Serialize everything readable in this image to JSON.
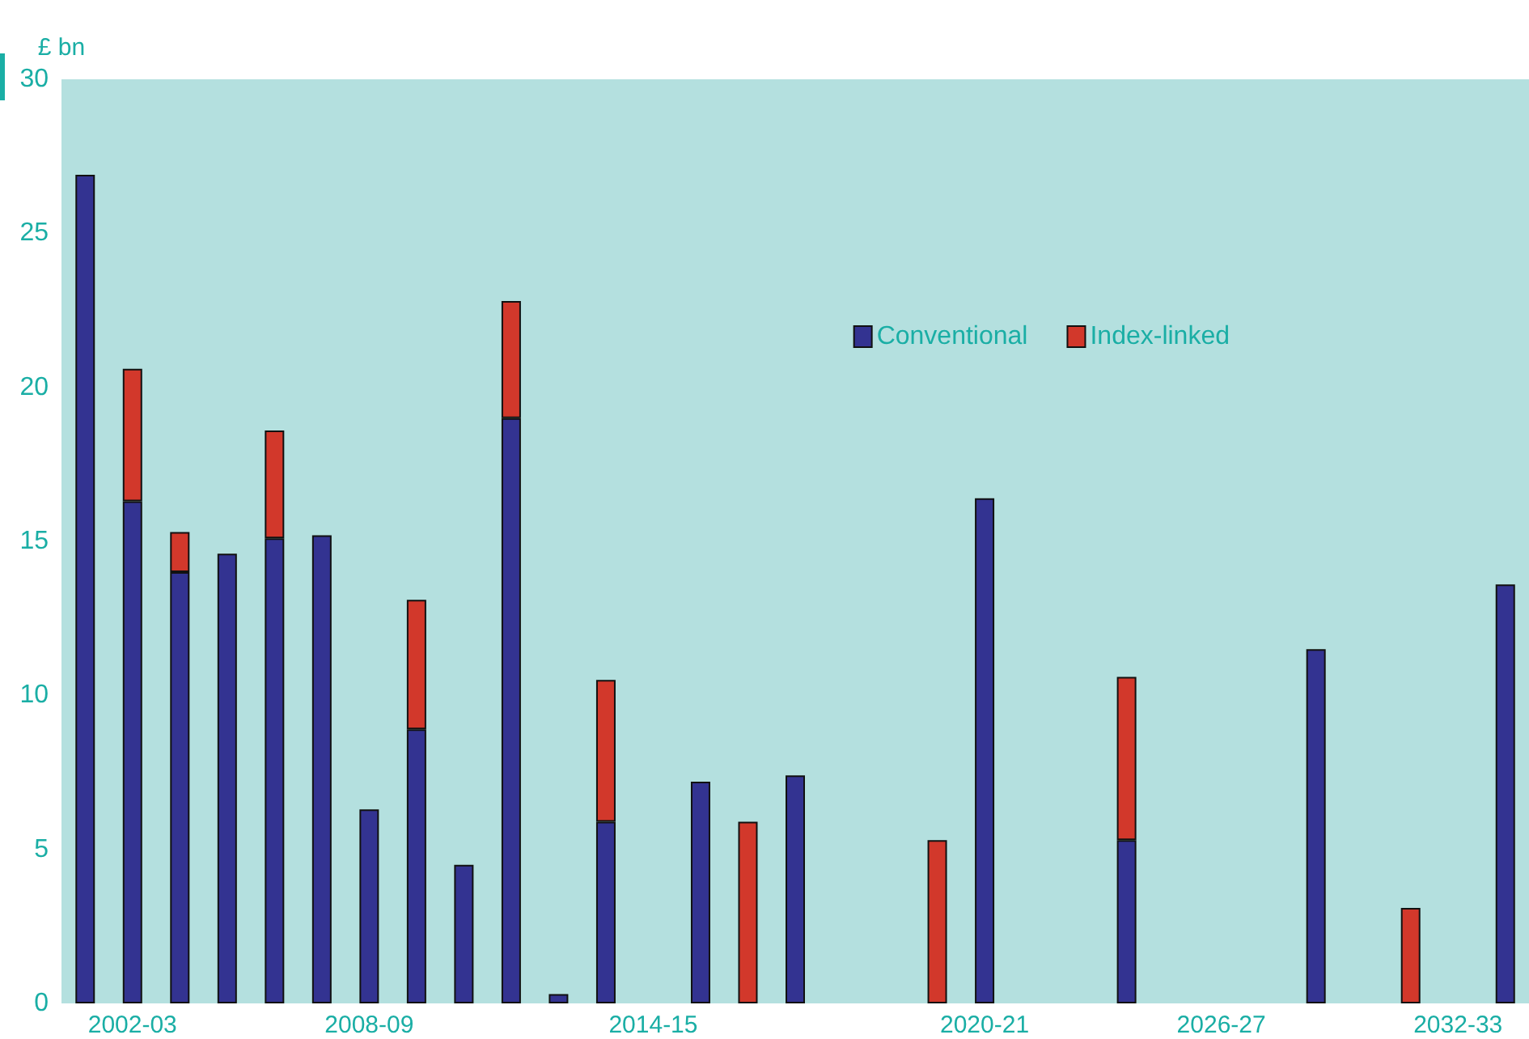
{
  "chart_data": {
    "type": "bar",
    "ylabel": "£ bn",
    "stacked": true,
    "legend": "top right",
    "grid": false,
    "categories": [
      null,
      "2002-03",
      null,
      null,
      null,
      null,
      "2008-09",
      null,
      null,
      null,
      null,
      null,
      "2014-15",
      null,
      null,
      null,
      null,
      null,
      null,
      "2020-21",
      null,
      null,
      null,
      null,
      "2026-27",
      null,
      null,
      null,
      null,
      "2032-33",
      null
    ],
    "ylim": [
      0,
      30
    ],
    "yticks": [
      0,
      5,
      10,
      15,
      20,
      25,
      30
    ],
    "series": [
      {
        "name": "Conventional",
        "color": "#333391",
        "values": [
          26.9,
          16.3,
          14.0,
          14.6,
          15.1,
          15.2,
          6.3,
          8.9,
          4.5,
          19.0,
          0.3,
          5.9,
          null,
          7.2,
          null,
          7.4,
          null,
          null,
          null,
          16.4,
          null,
          null,
          5.3,
          null,
          null,
          null,
          11.5,
          null,
          null,
          null,
          13.6
        ]
      },
      {
        "name": "Index-linked",
        "color": "#d2382b",
        "values": [
          null,
          4.3,
          1.3,
          null,
          3.5,
          null,
          null,
          4.2,
          null,
          3.8,
          null,
          4.6,
          null,
          null,
          5.9,
          null,
          null,
          null,
          5.3,
          null,
          null,
          null,
          5.3,
          null,
          null,
          null,
          null,
          null,
          3.1,
          null,
          null
        ]
      }
    ]
  }
}
